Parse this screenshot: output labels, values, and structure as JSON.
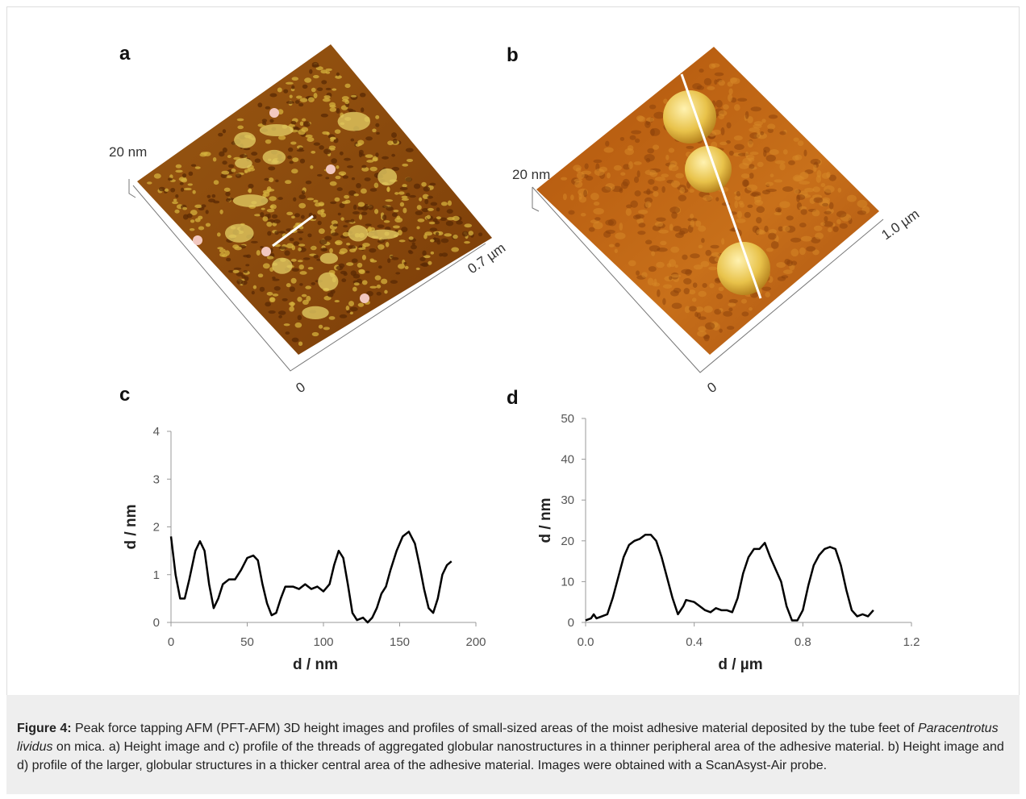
{
  "panels": [
    {
      "label": "a",
      "height_scale": "20 nm",
      "length": "0.7 µm",
      "origin": "0"
    },
    {
      "label": "b",
      "height_scale": "20 nm",
      "length": "1.0 µm",
      "origin": "0"
    }
  ],
  "chart_data": [
    {
      "type": "line",
      "label": "c",
      "x_label": "d / nm",
      "y_label": "d / nm",
      "color": "#000000",
      "xlim": [
        0,
        200
      ],
      "xticks": [
        0,
        50,
        100,
        150,
        200
      ],
      "ylim": [
        0,
        4
      ],
      "yticks": [
        0,
        1,
        2,
        3,
        4
      ],
      "x": [
        0,
        3,
        6,
        9,
        12,
        16,
        19,
        22,
        25,
        28,
        31,
        34,
        38,
        42,
        46,
        50,
        54,
        57,
        60,
        63,
        66,
        69,
        72,
        75,
        80,
        84,
        88,
        92,
        96,
        100,
        104,
        107,
        110,
        113,
        116,
        119,
        122,
        126,
        129,
        132,
        135,
        138,
        141,
        144,
        148,
        152,
        156,
        160,
        163,
        166,
        169,
        172,
        175,
        178,
        181,
        184
      ],
      "values": [
        1.8,
        1.0,
        0.5,
        0.5,
        0.9,
        1.5,
        1.7,
        1.5,
        0.8,
        0.3,
        0.5,
        0.8,
        0.9,
        0.9,
        1.1,
        1.35,
        1.4,
        1.3,
        0.8,
        0.4,
        0.15,
        0.2,
        0.5,
        0.75,
        0.75,
        0.7,
        0.8,
        0.7,
        0.75,
        0.65,
        0.8,
        1.2,
        1.5,
        1.35,
        0.8,
        0.2,
        0.05,
        0.1,
        0.0,
        0.1,
        0.3,
        0.6,
        0.75,
        1.1,
        1.5,
        1.8,
        1.9,
        1.65,
        1.2,
        0.7,
        0.3,
        0.2,
        0.5,
        1.0,
        1.2,
        1.28
      ]
    },
    {
      "type": "line",
      "label": "d",
      "x_label": "d / µm",
      "y_label": "d / nm",
      "color": "#000000",
      "xlim": [
        0,
        1.2
      ],
      "xticks": [
        {
          "value": 0,
          "label": "0.0"
        },
        0.4,
        0.8,
        1.2
      ],
      "ylim": [
        0,
        50
      ],
      "yticks": [
        0,
        10,
        20,
        30,
        40,
        50
      ],
      "x": [
        0,
        0.02,
        0.03,
        0.04,
        0.06,
        0.08,
        0.1,
        0.12,
        0.14,
        0.16,
        0.18,
        0.2,
        0.22,
        0.24,
        0.26,
        0.28,
        0.3,
        0.32,
        0.34,
        0.36,
        0.37,
        0.4,
        0.42,
        0.44,
        0.46,
        0.48,
        0.5,
        0.52,
        0.54,
        0.56,
        0.58,
        0.6,
        0.62,
        0.64,
        0.66,
        0.68,
        0.7,
        0.72,
        0.74,
        0.76,
        0.78,
        0.8,
        0.82,
        0.84,
        0.86,
        0.88,
        0.9,
        0.92,
        0.94,
        0.96,
        0.98,
        1.0,
        1.02,
        1.04,
        1.06
      ],
      "values": [
        0.5,
        1,
        2,
        1,
        1.5,
        2,
        6,
        11,
        16,
        19,
        20,
        20.5,
        21.5,
        21.5,
        20,
        16,
        11,
        6,
        2,
        4,
        5.5,
        5,
        4,
        3,
        2.5,
        3.5,
        3,
        3,
        2.5,
        6,
        12,
        16,
        18,
        18,
        19.5,
        16,
        13,
        10,
        4,
        0.5,
        0.5,
        3,
        9,
        14,
        16.5,
        18,
        18.5,
        18,
        14,
        8,
        3,
        1.5,
        2,
        1.5,
        3
      ]
    }
  ],
  "caption": {
    "label": "Figure 4:",
    "text_1": " Peak force tapping AFM (PFT-AFM) 3D height images and profiles of small-sized areas of the moist adhesive material deposited by the tube feet of ",
    "species": "Paracentrotus lividus",
    "text_2": " on mica. a) Height image and c) profile of the threads of aggregated globular nanostructures in a thinner peripheral area of the adhesive material. b) Height image and d) profile of the larger, globular structures in a thicker central area of the adhesive material. Images were obtained with a ScanAsyst-Air probe."
  }
}
